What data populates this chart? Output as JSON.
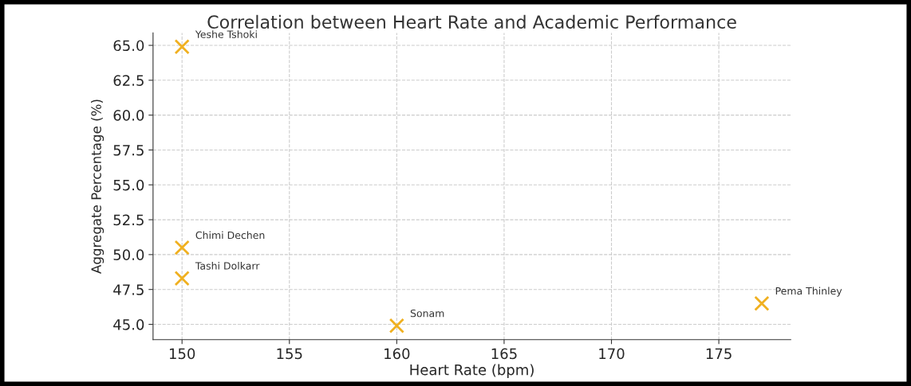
{
  "chart_data": {
    "type": "scatter",
    "title": "Correlation between Heart Rate and Academic Performance",
    "xlabel": "Heart Rate (bpm)",
    "ylabel": "Aggregate Percentage (%)",
    "x": [
      150,
      150,
      150,
      160,
      177
    ],
    "values": [
      64.9,
      50.5,
      48.3,
      44.9,
      46.5
    ],
    "color": "#f0b020",
    "marker": "cross",
    "grid": true,
    "xlim": [
      148.65,
      178.35
    ],
    "xticks": [
      150,
      155,
      160,
      165,
      170,
      175
    ],
    "ylim": [
      43.9,
      65.9
    ],
    "yticks": [
      {
        "value": 45,
        "label": "45.0"
      },
      {
        "value": 47.5,
        "label": "47.5"
      },
      {
        "value": 50,
        "label": "50.0"
      },
      {
        "value": 52.5,
        "label": "52.5"
      },
      {
        "value": 55,
        "label": "55.0"
      },
      {
        "value": 57.5,
        "label": "57.5"
      },
      {
        "value": 60,
        "label": "60.0"
      },
      {
        "value": 62.5,
        "label": "62.5"
      },
      {
        "value": 65,
        "label": "65.0"
      }
    ],
    "annotations": [
      {
        "text": "Yeshe Tshoki",
        "x": 150,
        "y": 64.9
      },
      {
        "text": "Chimi Dechen",
        "x": 150,
        "y": 50.5
      },
      {
        "text": "Tashi Dolkarr",
        "x": 150,
        "y": 48.3
      },
      {
        "text": "Sonam",
        "x": 160,
        "y": 44.9
      },
      {
        "text": "Pema Thinley",
        "x": 177,
        "y": 46.5
      }
    ]
  }
}
